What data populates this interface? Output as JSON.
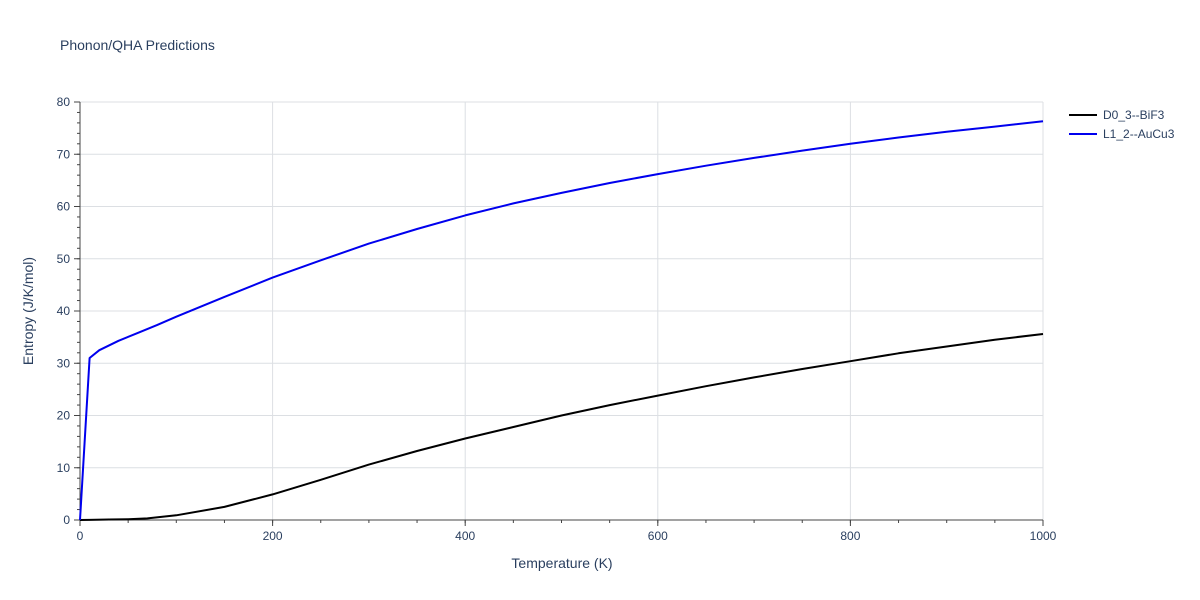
{
  "chart_data": {
    "type": "line",
    "title": "Phonon/QHA Predictions",
    "xlabel": "Temperature (K)",
    "ylabel": "Entropy (J/K/mol)",
    "xlim": [
      0,
      1000
    ],
    "ylim": [
      0,
      80
    ],
    "xticks": [
      0,
      200,
      400,
      600,
      800,
      1000
    ],
    "yticks": [
      0,
      10,
      20,
      30,
      40,
      50,
      60,
      70,
      80
    ],
    "grid": true,
    "legend_position": "top-right",
    "series": [
      {
        "name": "D0_3--BiF3",
        "color": "#000000",
        "x": [
          0,
          10,
          30,
          50,
          70,
          100,
          150,
          200,
          250,
          300,
          350,
          400,
          450,
          500,
          550,
          600,
          650,
          700,
          750,
          800,
          850,
          900,
          950,
          1000
        ],
        "y": [
          0,
          0.02,
          0.1,
          0.15,
          0.3,
          0.9,
          2.5,
          4.9,
          7.7,
          10.6,
          13.2,
          15.6,
          17.8,
          20.0,
          22.0,
          23.8,
          25.6,
          27.3,
          28.9,
          30.4,
          31.9,
          33.2,
          34.5,
          35.6
        ]
      },
      {
        "name": "L1_2--AuCu3",
        "color": "#0000ee",
        "x": [
          0,
          10,
          20,
          40,
          60,
          80,
          100,
          150,
          200,
          250,
          300,
          350,
          400,
          450,
          500,
          550,
          600,
          650,
          700,
          750,
          800,
          850,
          900,
          950,
          1000
        ],
        "y": [
          0,
          31.0,
          32.5,
          34.3,
          35.8,
          37.3,
          38.9,
          42.7,
          46.4,
          49.7,
          52.9,
          55.7,
          58.3,
          60.6,
          62.6,
          64.5,
          66.2,
          67.8,
          69.3,
          70.7,
          72.0,
          73.2,
          74.3,
          75.3,
          76.3
        ]
      }
    ]
  }
}
